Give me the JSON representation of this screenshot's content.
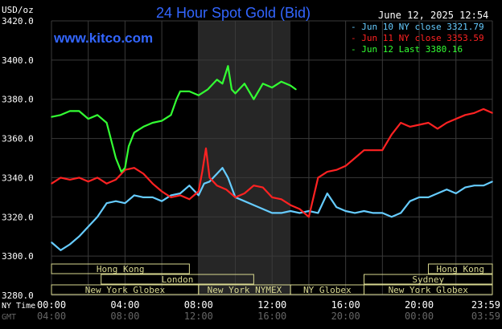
{
  "header": {
    "title": "24 Hour Spot Gold (Bid)",
    "website": "www.kitco.com",
    "unit_label": "USD/oz",
    "datetime": "June 12, 2025 12:54"
  },
  "legend": [
    {
      "label": "- Jun 10 NY close 3321.79",
      "color": "#66ccff"
    },
    {
      "label": "- Jun 11 NY close 3353.59",
      "color": "#ff2222"
    },
    {
      "label": "- Jun 12 Last 3380.16",
      "color": "#33ff33"
    }
  ],
  "time_axis": {
    "ny_label": "NY Time",
    "gmt_label": "GMT",
    "ny_ticks": [
      "00:00",
      "04:00",
      "08:00",
      "12:00",
      "16:00",
      "20:00",
      "23:59"
    ],
    "gmt_ticks": [
      "04:00",
      "08:00",
      "12:00",
      "16:00",
      "20:00",
      "00:00",
      "03:59"
    ]
  },
  "sessions": [
    {
      "label": "Hong Kong",
      "start": 0.0,
      "end": 7.5,
      "row": 0
    },
    {
      "label": "Hong Kong",
      "start": 20.5,
      "end": 23.98,
      "row": 0
    },
    {
      "label": "London",
      "start": 2.7,
      "end": 11.0,
      "row": 1
    },
    {
      "label": "Sydney",
      "start": 17.0,
      "end": 23.98,
      "row": 1
    },
    {
      "label": "New York Globex",
      "start": 0.0,
      "end": 8.0,
      "row": 2
    },
    {
      "label": "New York NYMEX",
      "start": 8.0,
      "end": 13.0,
      "row": 2
    },
    {
      "label": "NY Globex",
      "start": 13.0,
      "end": 17.0,
      "row": 2
    },
    {
      "label": "New York Globex",
      "start": 17.0,
      "end": 23.98,
      "row": 2
    }
  ],
  "colors": {
    "background": "#000000",
    "grid": "#3a3a3a",
    "axis_text": "#ffffff",
    "gmt_text": "#666666",
    "session_box": "#d8d890",
    "title": "#3366ff",
    "shading": "#262626"
  },
  "chart_data": {
    "type": "line",
    "title": "24 Hour Spot Gold (Bid)",
    "ylabel": "USD/oz",
    "ylim": [
      3280,
      3420
    ],
    "xlim": [
      0,
      23.98
    ],
    "yticks": [
      "3280.0",
      "3300.0",
      "3320.0",
      "3340.0",
      "3360.0",
      "3380.0",
      "3400.0",
      "3420.0"
    ],
    "grid": true,
    "legend_position": "top-right",
    "shaded_hours": [
      [
        8.0,
        13.0
      ]
    ],
    "series": [
      {
        "name": "Jun 10 NY close 3321.79",
        "color": "#66ccff",
        "x": [
          0,
          0.5,
          1.0,
          1.5,
          2.0,
          2.5,
          3.0,
          3.5,
          4.0,
          4.5,
          5.0,
          5.5,
          6.0,
          6.5,
          7.0,
          7.5,
          8.0,
          8.3,
          8.6,
          9.0,
          9.3,
          9.6,
          10.0,
          10.5,
          11.0,
          11.5,
          12.0,
          12.5,
          13.0,
          13.5,
          14.0,
          14.5,
          15.0,
          15.5,
          16.0,
          16.5,
          17.0,
          17.5,
          18.0,
          18.5,
          19.0,
          19.5,
          20.0,
          20.5,
          21.0,
          21.5,
          22.0,
          22.5,
          23.0,
          23.5,
          23.98
        ],
        "y": [
          3307,
          3303,
          3306,
          3310,
          3315,
          3320,
          3327,
          3328,
          3327,
          3331,
          3330,
          3330,
          3328,
          3331,
          3332,
          3336,
          3331,
          3337,
          3338,
          3342,
          3345,
          3340,
          3330,
          3328,
          3326,
          3324,
          3322,
          3322,
          3323,
          3322,
          3323,
          3322,
          3332,
          3325,
          3323,
          3322,
          3323,
          3322,
          3322,
          3320,
          3322,
          3328,
          3330,
          3330,
          3332,
          3334,
          3332,
          3335,
          3336,
          3336,
          3338
        ]
      },
      {
        "name": "Jun 11 NY close 3353.59",
        "color": "#ff2222",
        "x": [
          0,
          0.5,
          1.0,
          1.5,
          2.0,
          2.5,
          3.0,
          3.5,
          4.0,
          4.5,
          5.0,
          5.5,
          6.0,
          6.5,
          7.0,
          7.5,
          8.0,
          8.2,
          8.4,
          8.6,
          9.0,
          9.5,
          10.0,
          10.5,
          11.0,
          11.5,
          12.0,
          12.5,
          13.0,
          13.5,
          14.0,
          14.5,
          15.0,
          15.5,
          16.0,
          16.5,
          17.0,
          17.5,
          18.0,
          18.5,
          19.0,
          19.5,
          20.0,
          20.5,
          21.0,
          21.5,
          22.0,
          22.5,
          23.0,
          23.5,
          23.98
        ],
        "y": [
          3337,
          3340,
          3339,
          3340,
          3338,
          3340,
          3337,
          3339,
          3344,
          3345,
          3342,
          3337,
          3333,
          3330,
          3331,
          3329,
          3333,
          3343,
          3355,
          3340,
          3336,
          3334,
          3330,
          3332,
          3336,
          3335,
          3330,
          3329,
          3326,
          3324,
          3320,
          3340,
          3343,
          3344,
          3346,
          3350,
          3354,
          3354,
          3354,
          3362,
          3368,
          3366,
          3367,
          3368,
          3365,
          3368,
          3370,
          3372,
          3373,
          3375,
          3373
        ]
      },
      {
        "name": "Jun 12 Last 3380.16",
        "color": "#33ff33",
        "x": [
          0,
          0.5,
          1.0,
          1.5,
          2.0,
          2.5,
          3.0,
          3.5,
          3.8,
          4.0,
          4.2,
          4.5,
          5.0,
          5.5,
          6.0,
          6.5,
          6.8,
          7.0,
          7.5,
          8.0,
          8.5,
          9.0,
          9.3,
          9.6,
          9.8,
          10.0,
          10.5,
          11.0,
          11.5,
          12.0,
          12.5,
          13.0,
          13.3
        ],
        "y": [
          3371,
          3372,
          3374,
          3374,
          3370,
          3372,
          3368,
          3350,
          3343,
          3345,
          3356,
          3363,
          3366,
          3368,
          3369,
          3372,
          3380,
          3384,
          3384,
          3382,
          3385,
          3390,
          3388,
          3397,
          3385,
          3383,
          3388,
          3380,
          3388,
          3386,
          3389,
          3387,
          3385
        ]
      }
    ]
  }
}
